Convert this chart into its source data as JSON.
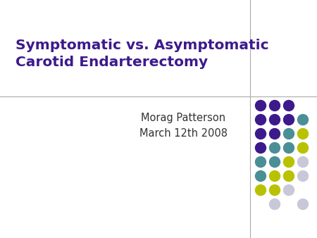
{
  "title_line1": "Symptomatic vs. Asymptomatic",
  "title_line2": "Carotid Endarterectomy",
  "subtitle_line1": "Morag Patterson",
  "subtitle_line2": "March 12th 2008",
  "title_color": "#3d1a8c",
  "subtitle_color": "#333333",
  "background_color": "#ffffff",
  "divider_color": "#aaaaaa",
  "title_fontsize": 14.5,
  "subtitle_fontsize": 10.5,
  "dot_purple": "#3d1a8c",
  "dot_teal": "#4a8f96",
  "dot_yellow": "#b8c200",
  "dot_gray": "#c8c8d8",
  "dot_grid": [
    [
      "#3d1a8c",
      "#3d1a8c",
      "#3d1a8c",
      ""
    ],
    [
      "#3d1a8c",
      "#3d1a8c",
      "#3d1a8c",
      "#4a8f96"
    ],
    [
      "#3d1a8c",
      "#3d1a8c",
      "#4a8f96",
      "#b8c200"
    ],
    [
      "#3d1a8c",
      "#4a8f96",
      "#4a8f96",
      "#b8c200"
    ],
    [
      "#4a8f96",
      "#4a8f96",
      "#b8c200",
      "#c8c8d8"
    ],
    [
      "#4a8f96",
      "#b8c200",
      "#b8c200",
      "#c8c8d8"
    ],
    [
      "#b8c200",
      "#b8c200",
      "#c8c8d8",
      ""
    ],
    [
      "",
      "#c8c8d8",
      "",
      "#c8c8d8"
    ]
  ]
}
